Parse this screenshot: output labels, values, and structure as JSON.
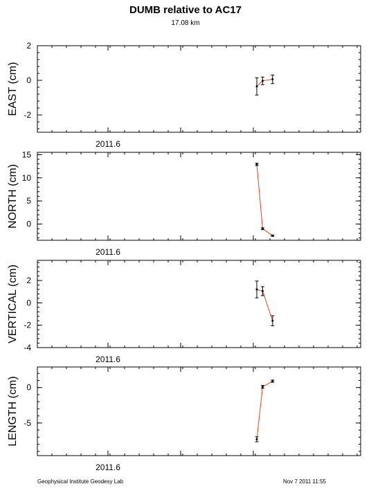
{
  "header": {
    "title": "DUMB relative to AC17",
    "subtitle": "17.08 km"
  },
  "footer": {
    "credit": "Geophysical Institute Geodesy Lab",
    "timestamp": "Nov 7 2011 11:55"
  },
  "colors": {
    "line": "#e8431a",
    "marker": "#000000",
    "axis": "#000000"
  },
  "chart_data": [
    {
      "type": "line",
      "ylabel": "EAST (cm)",
      "xlabel": "",
      "x_tick_label": "2011.6",
      "xlim": [
        2011.5,
        2012.0
      ],
      "ylim": [
        -3,
        2
      ],
      "yticks": [
        2,
        0,
        -2
      ],
      "ytick_labels": [
        "2",
        "0",
        "-2"
      ],
      "grid": false,
      "series": [
        {
          "x": [
            2011.8394,
            2011.8484,
            2011.8638
          ],
          "y": [
            -0.35,
            -0.03,
            0.06
          ],
          "err": [
            0.5,
            0.22,
            0.25
          ]
        }
      ]
    },
    {
      "type": "line",
      "ylabel": "NORTH (cm)",
      "xlabel": "",
      "x_tick_label": "2011.6",
      "xlim": [
        2011.5,
        2012.0
      ],
      "ylim": [
        -3.5,
        15.5
      ],
      "yticks": [
        15,
        10,
        5,
        0
      ],
      "ytick_labels": [
        "15",
        "10",
        "5",
        "0"
      ],
      "grid": false,
      "series": [
        {
          "x": [
            2011.8394,
            2011.8484,
            2011.8638
          ],
          "y": [
            12.9,
            -1.0,
            -2.5
          ],
          "err": [
            0.25,
            0.2,
            0.15
          ]
        }
      ]
    },
    {
      "type": "line",
      "ylabel": "VERTICAL (cm)",
      "xlabel": "",
      "x_tick_label": "2011.6",
      "xlim": [
        2011.5,
        2012.0
      ],
      "ylim": [
        -4,
        3.8
      ],
      "yticks": [
        2,
        0,
        -2,
        -4
      ],
      "ytick_labels": [
        "2",
        "0",
        "-2",
        "-4"
      ],
      "grid": false,
      "series": [
        {
          "x": [
            2011.8394,
            2011.8484,
            2011.8638
          ],
          "y": [
            1.2,
            1.05,
            -1.6
          ],
          "err": [
            0.75,
            0.4,
            0.45
          ]
        }
      ]
    },
    {
      "type": "line",
      "ylabel": "LENGTH (cm)",
      "xlabel": "",
      "x_tick_label": "2011.6",
      "xlim": [
        2011.5,
        2012.0
      ],
      "ylim": [
        -9.6,
        2.9
      ],
      "yticks": [
        0,
        -5
      ],
      "ytick_labels": [
        "0",
        "-5"
      ],
      "grid": false,
      "series": [
        {
          "x": [
            2011.8394,
            2011.8484,
            2011.8638
          ],
          "y": [
            -7.3,
            0.1,
            0.9
          ],
          "err": [
            0.35,
            0.2,
            0.15
          ]
        }
      ]
    }
  ]
}
